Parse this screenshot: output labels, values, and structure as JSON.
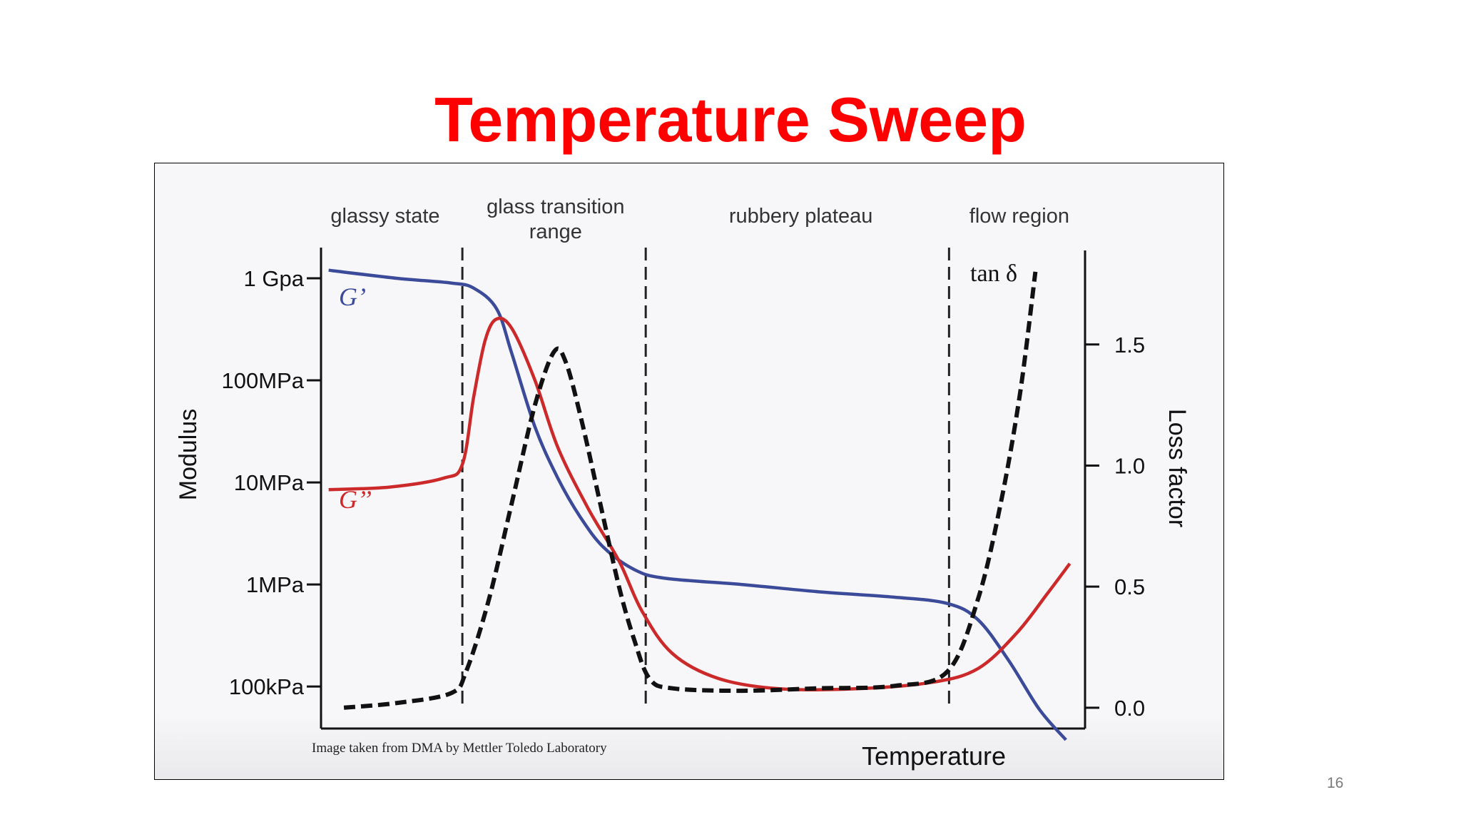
{
  "slide": {
    "title": "Temperature Sweep",
    "page_number": "16",
    "credit": "Image taken from DMA by Mettler Toledo Laboratory"
  },
  "chart_data": {
    "type": "line",
    "title": "",
    "xlabel": "Temperature",
    "ylabel_left": "Modulus",
    "ylabel_right": "Loss factor",
    "y_left_scale": "log",
    "y_left_ticks": [
      {
        "label": "1 Gpa",
        "value": 1000000000
      },
      {
        "label": "100MPa",
        "value": 100000000
      },
      {
        "label": "10MPa",
        "value": 10000000
      },
      {
        "label": "1MPa",
        "value": 1000000
      },
      {
        "label": "100kPa",
        "value": 100000
      }
    ],
    "y_left_range": [
      40000,
      2000000000
    ],
    "y_right_ticks": [
      "0.0",
      "0.5",
      "1.0",
      "1.5"
    ],
    "y_right_range": [
      -0.08,
      1.9
    ],
    "x_range": [
      0,
      100
    ],
    "x_ticks_shown": false,
    "grid": false,
    "regions": [
      {
        "label_lines": [
          "glassy state"
        ],
        "x_center": 8.4
      },
      {
        "label_lines": [
          "glass  transition",
          "range"
        ],
        "x_center": 30.7
      },
      {
        "label_lines": [
          "rubbery plateau"
        ],
        "x_center": 62.8
      },
      {
        "label_lines": [
          "flow region"
        ],
        "x_center": 91.4
      }
    ],
    "region_boundaries_x": [
      18.5,
      42.5,
      82.2
    ],
    "series": [
      {
        "name": "G’",
        "axis": "left",
        "color": "#3b4a99",
        "style": "solid",
        "points": [
          [
            1,
            1200000000
          ],
          [
            10,
            1000000000
          ],
          [
            17,
            900000000
          ],
          [
            20,
            800000000
          ],
          [
            23,
            500000000
          ],
          [
            25,
            180000000
          ],
          [
            28,
            35000000
          ],
          [
            31,
            11000000
          ],
          [
            34,
            4500000
          ],
          [
            37,
            2300000
          ],
          [
            41,
            1400000
          ],
          [
            45,
            1150000
          ],
          [
            55,
            1000000
          ],
          [
            65,
            850000
          ],
          [
            75,
            750000
          ],
          [
            82,
            650000
          ],
          [
            86,
            450000
          ],
          [
            90,
            180000
          ],
          [
            94,
            60000
          ],
          [
            97.5,
            30000
          ]
        ]
      },
      {
        "name": "G’’",
        "axis": "left",
        "color": "#cc2a2a",
        "style": "solid",
        "points": [
          [
            1,
            8500000
          ],
          [
            9,
            9000000
          ],
          [
            16,
            11000000
          ],
          [
            18.5,
            15000000
          ],
          [
            20,
            70000000
          ],
          [
            21.5,
            250000000
          ],
          [
            23,
            400000000
          ],
          [
            25,
            320000000
          ],
          [
            28,
            100000000
          ],
          [
            31,
            22000000
          ],
          [
            35,
            5500000
          ],
          [
            39,
            1700000
          ],
          [
            42,
            550000
          ],
          [
            46,
            210000
          ],
          [
            52,
            120000
          ],
          [
            60,
            95000
          ],
          [
            70,
            95000
          ],
          [
            80,
            110000
          ],
          [
            86,
            150000
          ],
          [
            91,
            330000
          ],
          [
            95,
            800000
          ],
          [
            98,
            1600000
          ]
        ]
      },
      {
        "name": "tan δ",
        "axis": "right",
        "color": "#111111",
        "style": "dashed",
        "points": [
          [
            3,
            0.0
          ],
          [
            10,
            0.02
          ],
          [
            17,
            0.06
          ],
          [
            19,
            0.15
          ],
          [
            22,
            0.45
          ],
          [
            25,
            0.85
          ],
          [
            28,
            1.25
          ],
          [
            30.5,
            1.47
          ],
          [
            32,
            1.43
          ],
          [
            34,
            1.2
          ],
          [
            36.5,
            0.85
          ],
          [
            39,
            0.5
          ],
          [
            41,
            0.28
          ],
          [
            43,
            0.12
          ],
          [
            46,
            0.08
          ],
          [
            55,
            0.07
          ],
          [
            65,
            0.08
          ],
          [
            75,
            0.09
          ],
          [
            82,
            0.15
          ],
          [
            86,
            0.45
          ],
          [
            89,
            0.85
          ],
          [
            91.5,
            1.3
          ],
          [
            93.5,
            1.8
          ]
        ]
      }
    ],
    "curve_labels": [
      {
        "text": "G’",
        "series": "G’",
        "color": "#3b4a99"
      },
      {
        "text": "G’’",
        "series": "G’’",
        "color": "#cc2a2a"
      },
      {
        "text": "tan δ",
        "series": "tan δ",
        "color": "#111111"
      }
    ]
  }
}
